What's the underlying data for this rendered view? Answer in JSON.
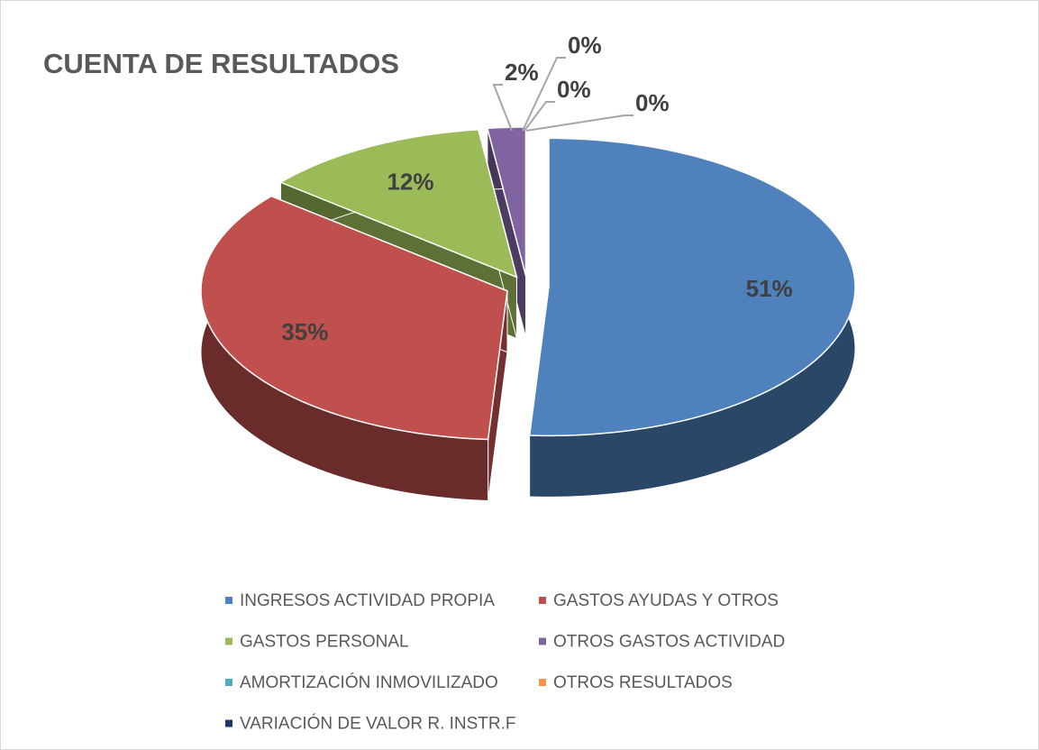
{
  "chart_data": {
    "type": "pie",
    "title": "CUENTA DE RESULTADOS",
    "categories": [
      "INGRESOS ACTIVIDAD PROPIA",
      "GASTOS AYUDAS Y OTROS",
      "GASTOS PERSONAL",
      "OTROS GASTOS ACTIVIDAD",
      "AMORTIZACIÓN INMOVILIZADO",
      "OTROS RESULTADOS",
      "VARIACIÓN DE VALOR R. INSTR.F"
    ],
    "values": [
      51,
      35,
      12,
      2,
      0,
      0,
      0
    ],
    "value_labels": [
      "51%",
      "35%",
      "12%",
      "2%",
      "0%",
      "0%",
      "0%"
    ],
    "colors": [
      "#4f81bd",
      "#c0504d",
      "#9bbb59",
      "#8064a2",
      "#4bacc6",
      "#f79646",
      "#1f3864"
    ],
    "legend": "bottom"
  }
}
